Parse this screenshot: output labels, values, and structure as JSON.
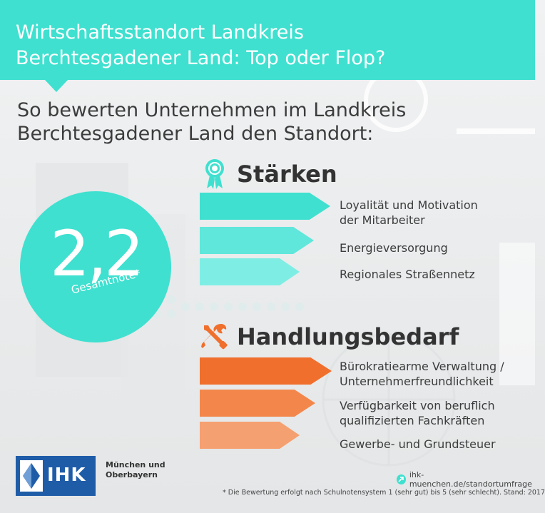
{
  "header": {
    "title_line1": "Wirtschaftsstandort Landkreis",
    "title_line2": "Berchtesgadener Land: Top oder Flop?"
  },
  "subtitle": {
    "line1": "So bewerten Unternehmen im Landkreis",
    "line2": "Berchtesgadener Land den Standort:"
  },
  "badge": {
    "value": "2,2",
    "label": "Gesamtnote*"
  },
  "strengths": {
    "title": "Stärken",
    "icon": "award-ribbon-icon",
    "items": [
      {
        "line1": "Loyalität und Motivation",
        "line2": "der Mitarbeiter"
      },
      {
        "line1": "Energieversorgung",
        "line2": ""
      },
      {
        "line1": "Regionales Straßennetz",
        "line2": ""
      }
    ]
  },
  "needs": {
    "title": "Handlungsbedarf",
    "icon": "tools-icon",
    "items": [
      {
        "line1": "Bürokratiearme Verwaltung /",
        "line2": "Unternehmerfreundlichkeit"
      },
      {
        "line1": "Verfügbarkeit von beruflich",
        "line2": "qualifizierten Fachkräften"
      },
      {
        "line1": "Gewerbe- und Grundsteuer",
        "line2": ""
      }
    ]
  },
  "logo": {
    "text": "IHK",
    "sub_line1": "München und",
    "sub_line2": "Oberbayern"
  },
  "link": {
    "text": "ihk-muenchen.de/standortumfrage"
  },
  "footnote": "* Die Bewertung erfolgt nach Schulnotensystem 1 (sehr gut) bis 5 (sehr schlecht). Stand: 2017",
  "colors": {
    "teal": "#3fe0cf",
    "orange": "#f06f2d",
    "ihk_blue": "#1f5ca8"
  }
}
